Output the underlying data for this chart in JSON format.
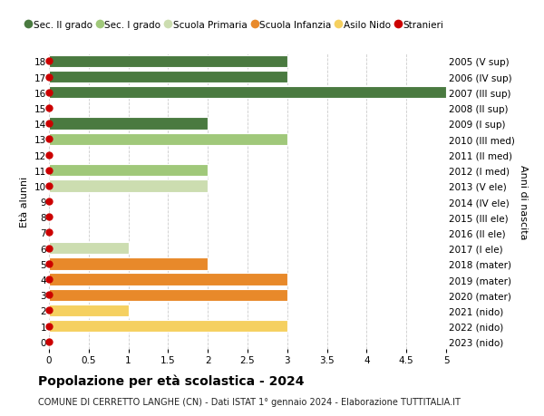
{
  "title": "Popolazione per età scolastica - 2024",
  "subtitle": "COMUNE DI CERRETTO LANGHE (CN) - Dati ISTAT 1° gennaio 2024 - Elaborazione TUTTITALIA.IT",
  "ylabel_left": "Età alunni",
  "ylabel_right": "Anni di nascita",
  "ages": [
    0,
    1,
    2,
    3,
    4,
    5,
    6,
    7,
    8,
    9,
    10,
    11,
    12,
    13,
    14,
    15,
    16,
    17,
    18
  ],
  "right_labels": [
    "2023 (nido)",
    "2022 (nido)",
    "2021 (nido)",
    "2020 (mater)",
    "2019 (mater)",
    "2018 (mater)",
    "2017 (I ele)",
    "2016 (II ele)",
    "2015 (III ele)",
    "2014 (IV ele)",
    "2013 (V ele)",
    "2012 (I med)",
    "2011 (II med)",
    "2010 (III med)",
    "2009 (I sup)",
    "2008 (II sup)",
    "2007 (III sup)",
    "2006 (IV sup)",
    "2005 (V sup)"
  ],
  "bars": [
    {
      "age": 0,
      "value": 0,
      "color": "#f5d060",
      "category": "Asilo Nido"
    },
    {
      "age": 1,
      "value": 3.0,
      "color": "#f5d060",
      "category": "Asilo Nido"
    },
    {
      "age": 2,
      "value": 1.0,
      "color": "#f5d060",
      "category": "Asilo Nido"
    },
    {
      "age": 3,
      "value": 3.0,
      "color": "#e8892a",
      "category": "Scuola Infanzia"
    },
    {
      "age": 4,
      "value": 3.0,
      "color": "#e8892a",
      "category": "Scuola Infanzia"
    },
    {
      "age": 5,
      "value": 2.0,
      "color": "#e8892a",
      "category": "Scuola Infanzia"
    },
    {
      "age": 6,
      "value": 1.0,
      "color": "#ccddb0",
      "category": "Scuola Primaria"
    },
    {
      "age": 7,
      "value": 0,
      "color": "#ccddb0",
      "category": "Scuola Primaria"
    },
    {
      "age": 8,
      "value": 0,
      "color": "#ccddb0",
      "category": "Scuola Primaria"
    },
    {
      "age": 9,
      "value": 0,
      "color": "#ccddb0",
      "category": "Scuola Primaria"
    },
    {
      "age": 10,
      "value": 2.0,
      "color": "#ccddb0",
      "category": "Scuola Primaria"
    },
    {
      "age": 11,
      "value": 2.0,
      "color": "#a0c87a",
      "category": "Sec. I grado"
    },
    {
      "age": 12,
      "value": 0,
      "color": "#a0c87a",
      "category": "Sec. I grado"
    },
    {
      "age": 13,
      "value": 3.0,
      "color": "#a0c87a",
      "category": "Sec. I grado"
    },
    {
      "age": 14,
      "value": 2.0,
      "color": "#4a7a40",
      "category": "Sec. II grado"
    },
    {
      "age": 15,
      "value": 0,
      "color": "#4a7a40",
      "category": "Sec. II grado"
    },
    {
      "age": 16,
      "value": 5.0,
      "color": "#4a7a40",
      "category": "Sec. II grado"
    },
    {
      "age": 17,
      "value": 3.0,
      "color": "#4a7a40",
      "category": "Sec. II grado"
    },
    {
      "age": 18,
      "value": 3.0,
      "color": "#4a7a40",
      "category": "Sec. II grado"
    }
  ],
  "xlim": [
    0,
    5.0
  ],
  "xticks": [
    0,
    0.5,
    1.0,
    1.5,
    2.0,
    2.5,
    3.0,
    3.5,
    4.0,
    4.5,
    5.0
  ],
  "legend_entries": [
    {
      "label": "Sec. II grado",
      "color": "#4a7a40",
      "type": "circle"
    },
    {
      "label": "Sec. I grado",
      "color": "#a0c87a",
      "type": "circle"
    },
    {
      "label": "Scuola Primaria",
      "color": "#ccddb0",
      "type": "circle"
    },
    {
      "label": "Scuola Infanzia",
      "color": "#e8892a",
      "type": "circle"
    },
    {
      "label": "Asilo Nido",
      "color": "#f5d060",
      "type": "circle"
    },
    {
      "label": "Stranieri",
      "color": "#cc0000",
      "type": "circle"
    }
  ],
  "bar_height": 0.78,
  "background_color": "#ffffff",
  "grid_color": "#cccccc",
  "title_fontsize": 10,
  "subtitle_fontsize": 7,
  "tick_fontsize": 7.5,
  "ylabel_fontsize": 8,
  "legend_fontsize": 7.5,
  "stranieri_dot_color": "#cc0000",
  "stranieri_dot_size": 5
}
